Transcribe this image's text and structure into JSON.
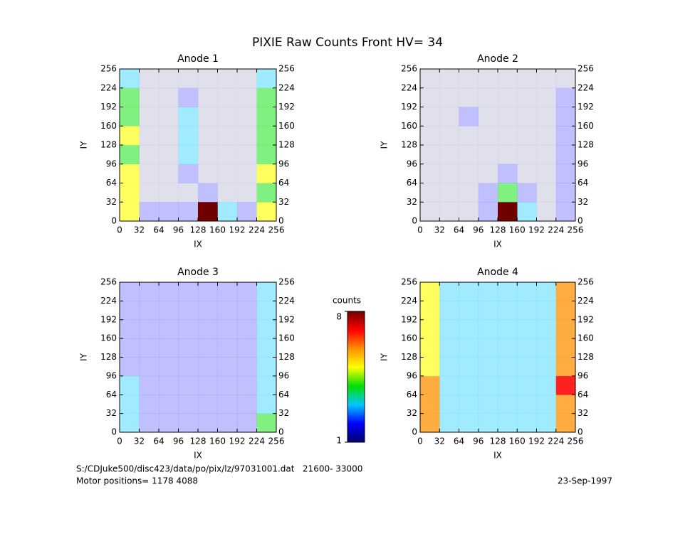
{
  "title": "PIXIE Raw Counts Front HV= 34",
  "chart_data": [
    {
      "type": "heatmap",
      "title": "Anode 1",
      "xlabel": "IX",
      "ylabel": "IY",
      "xlim": [
        0,
        256
      ],
      "ylim": [
        0,
        256
      ],
      "xticks": [
        0,
        32,
        64,
        96,
        128,
        160,
        192,
        224,
        256
      ],
      "yticks": [
        0,
        32,
        64,
        96,
        128,
        160,
        192,
        224,
        256
      ],
      "z": [
        [
          5,
          2,
          2,
          2,
          8,
          3,
          2,
          5
        ],
        [
          5,
          1,
          1,
          1,
          2,
          1,
          1,
          4
        ],
        [
          5,
          1,
          1,
          2,
          1,
          1,
          1,
          5
        ],
        [
          4,
          1,
          1,
          3,
          1,
          1,
          1,
          4
        ],
        [
          5,
          1,
          1,
          3,
          1,
          1,
          1,
          4
        ],
        [
          4,
          1,
          1,
          3,
          1,
          1,
          1,
          4
        ],
        [
          4,
          1,
          1,
          2,
          1,
          1,
          1,
          4
        ],
        [
          3,
          1,
          1,
          1,
          1,
          1,
          1,
          3
        ]
      ]
    },
    {
      "type": "heatmap",
      "title": "Anode 2",
      "xlabel": "IX",
      "ylabel": "IY",
      "xlim": [
        0,
        256
      ],
      "ylim": [
        0,
        256
      ],
      "xticks": [
        0,
        32,
        64,
        96,
        128,
        160,
        192,
        224,
        256
      ],
      "yticks": [
        0,
        32,
        64,
        96,
        128,
        160,
        192,
        224,
        256
      ],
      "z": [
        [
          1,
          1,
          1,
          2,
          8,
          3,
          1,
          2
        ],
        [
          1,
          1,
          1,
          2,
          4,
          2,
          1,
          2
        ],
        [
          1,
          1,
          1,
          1,
          2,
          1,
          1,
          2
        ],
        [
          1,
          1,
          1,
          1,
          1,
          1,
          1,
          2
        ],
        [
          1,
          1,
          1,
          1,
          1,
          1,
          1,
          2
        ],
        [
          1,
          1,
          2,
          1,
          1,
          1,
          1,
          2
        ],
        [
          1,
          1,
          1,
          1,
          1,
          1,
          1,
          2
        ],
        [
          1,
          1,
          1,
          1,
          1,
          1,
          1,
          1
        ]
      ]
    },
    {
      "type": "heatmap",
      "title": "Anode 3",
      "xlabel": "IX",
      "ylabel": "IY",
      "xlim": [
        0,
        256
      ],
      "ylim": [
        0,
        256
      ],
      "xticks": [
        0,
        32,
        64,
        96,
        128,
        160,
        192,
        224,
        256
      ],
      "yticks": [
        0,
        32,
        64,
        96,
        128,
        160,
        192,
        224,
        256
      ],
      "z": [
        [
          3,
          2,
          2,
          2,
          2,
          2,
          2,
          4
        ],
        [
          3,
          2,
          2,
          2,
          2,
          2,
          2,
          3
        ],
        [
          3,
          2,
          2,
          2,
          2,
          2,
          2,
          3
        ],
        [
          2,
          2,
          2,
          2,
          2,
          2,
          2,
          3
        ],
        [
          2,
          2,
          2,
          2,
          2,
          2,
          2,
          3
        ],
        [
          2,
          2,
          2,
          2,
          2,
          2,
          2,
          3
        ],
        [
          2,
          2,
          2,
          2,
          2,
          2,
          2,
          3
        ],
        [
          2,
          2,
          2,
          2,
          2,
          2,
          2,
          3
        ]
      ]
    },
    {
      "type": "heatmap",
      "title": "Anode 4",
      "xlabel": "IX",
      "ylabel": "IY",
      "xlim": [
        0,
        256
      ],
      "ylim": [
        0,
        256
      ],
      "xticks": [
        0,
        32,
        64,
        96,
        128,
        160,
        192,
        224,
        256
      ],
      "yticks": [
        0,
        32,
        64,
        96,
        128,
        160,
        192,
        224,
        256
      ],
      "z": [
        [
          6,
          3,
          3,
          3,
          3,
          3,
          3,
          6
        ],
        [
          6,
          3,
          3,
          3,
          3,
          3,
          3,
          6
        ],
        [
          6,
          3,
          3,
          3,
          3,
          3,
          3,
          7
        ],
        [
          5,
          3,
          3,
          3,
          3,
          3,
          3,
          6
        ],
        [
          5,
          3,
          3,
          3,
          3,
          3,
          3,
          6
        ],
        [
          5,
          3,
          3,
          3,
          3,
          3,
          3,
          6
        ],
        [
          5,
          3,
          3,
          3,
          3,
          3,
          3,
          6
        ],
        [
          5,
          3,
          3,
          3,
          3,
          3,
          3,
          6
        ]
      ]
    }
  ],
  "colorbar": {
    "label": "counts",
    "zlim": [
      1,
      8
    ],
    "ticks": [
      1,
      8
    ],
    "colors": [
      "#00006a",
      "#0000ff",
      "#00c8ff",
      "#00e000",
      "#ffff00",
      "#ff9000",
      "#ff0000",
      "#700000"
    ]
  },
  "footer": {
    "file": "S:/CDJuke500/disc423/data/po/pix/lz/97031001.dat   21600- 33000",
    "motor": "Motor positions= 1178 4088",
    "date": "23-Sep-1997"
  }
}
